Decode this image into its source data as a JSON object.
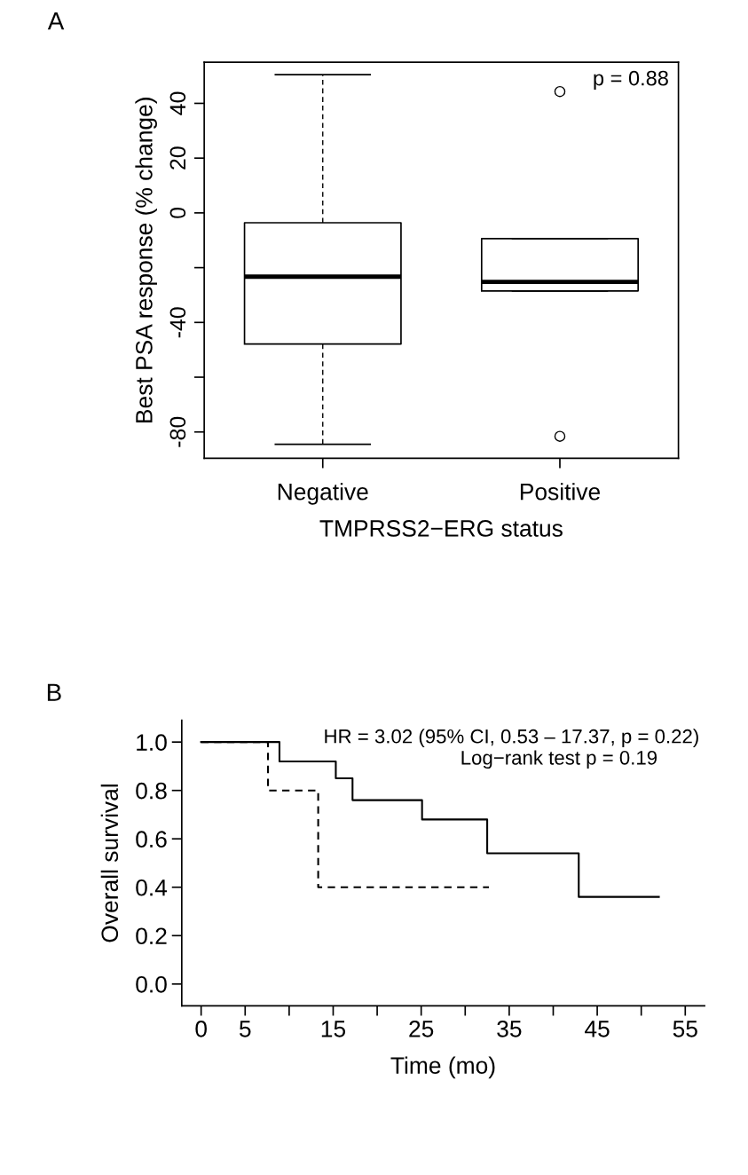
{
  "chart_data": [
    {
      "type": "box",
      "title": "A",
      "categories": [
        "Negative",
        "Positive"
      ],
      "xlabel": "TMPRSS2−ERG status",
      "ylabel": "Best PSA response (% change)",
      "boxes": [
        {
          "low": -84.5,
          "q1": -47.9,
          "median": -23.3,
          "q3": -3.6,
          "high": 50.5
        },
        {
          "low": -28.5,
          "q1": -28.5,
          "median": -25.2,
          "q3": -9.4,
          "high": -9.4,
          "outliers": [
            44.3,
            -81.6
          ]
        }
      ],
      "color": "#000000",
      "ylim": [
        -89.6,
        55
      ],
      "yticks": [
        40,
        20,
        0,
        {
          "value": -20,
          "label": null
        },
        -40,
        {
          "value": -60,
          "label": null
        },
        -80
      ],
      "annotations": [
        "p = 0.88"
      ],
      "grid": false,
      "legend": false
    },
    {
      "type": "step",
      "title": "B",
      "xlabel": "Time (mo)",
      "ylabel": "Overall survival",
      "series": [
        {
          "color": "#000000",
          "line_style": "solid",
          "x": [
            0,
            8.9,
            15.3,
            17.2,
            25.1,
            32.5,
            42.9,
            52
          ],
          "values": [
            1.0,
            0.92,
            0.85,
            0.76,
            0.68,
            0.54,
            0.36,
            0.36
          ]
        },
        {
          "color": "#000000",
          "line_style": "dashed",
          "x": [
            0,
            7.6,
            13.3,
            32.7
          ],
          "values": [
            1.0,
            0.8,
            0.4,
            0.4
          ]
        }
      ],
      "xlim": [
        -2.2,
        57.2
      ],
      "ylim": [
        -0.09,
        1.09
      ],
      "xticks": [
        0,
        5,
        {
          "value": 10,
          "label": null
        },
        15,
        {
          "value": 20,
          "label": null
        },
        25,
        {
          "value": 30,
          "label": null
        },
        35,
        {
          "value": 40,
          "label": null
        },
        45,
        {
          "value": 50,
          "label": null
        },
        55
      ],
      "yticks": [
        {
          "value": 0,
          "label": "0.0"
        },
        0.2,
        0.4,
        0.6,
        0.8,
        {
          "value": 1,
          "label": "1.0"
        }
      ],
      "annotations": [
        "HR = 3.02 (95% CI, 0.53 – 17.37, p = 0.22)",
        "Log−rank test p = 0.19"
      ],
      "grid": false,
      "legend": false
    }
  ]
}
